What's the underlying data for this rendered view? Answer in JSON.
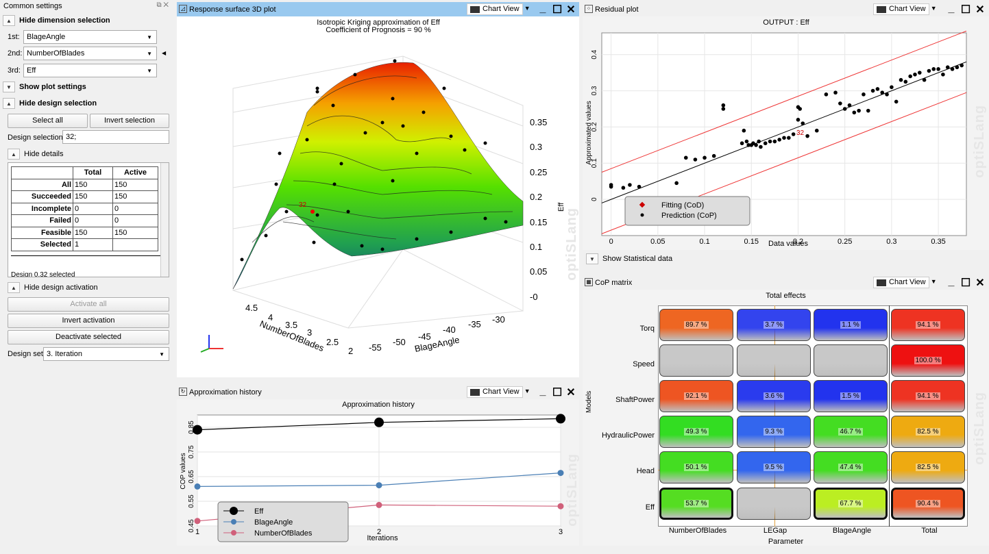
{
  "left_panel": {
    "title": "Common settings",
    "hide_dimension": "Hide dimension selection",
    "dim1_label": "1st:",
    "dim1_value": "BlageAngle",
    "dim2_label": "2nd:",
    "dim2_value": "NumberOfBlades",
    "dim3_label": "3rd:",
    "dim3_value": "Eff",
    "show_plot_settings": "Show plot settings",
    "hide_design_selection": "Hide design selection",
    "select_all": "Select all",
    "invert_selection": "Invert selection",
    "design_selection_label": "Design selection:",
    "design_selection_value": "32;",
    "hide_details": "Hide details",
    "details_headers": [
      "",
      "Total",
      "Active"
    ],
    "details_rows": [
      [
        "All",
        "150",
        "150"
      ],
      [
        "Succeeded",
        "150",
        "150"
      ],
      [
        "Incomplete",
        "0",
        "0"
      ],
      [
        "Failed",
        "0",
        "0"
      ],
      [
        "Feasible",
        "150",
        "150"
      ],
      [
        "Selected",
        "1",
        ""
      ]
    ],
    "details_status": "Design 0.32 selected",
    "hide_design_activation": "Hide design activation",
    "activate_all": "Activate all",
    "invert_activation": "Invert activation",
    "deactivate_selected": "Deactivate selected",
    "design_set_label": "Design set:",
    "design_set_value": "3. Iteration"
  },
  "surface": {
    "title": "Response surface 3D plot",
    "chart_view": "Chart View",
    "plot_title": "Isotropic Kriging approximation of Eff",
    "plot_subtitle": "Coefficient of Prognosis = 90 %",
    "z_label": "Eff",
    "z_ticks": [
      "0.35",
      "0.3",
      "0.25",
      "0.2",
      "0.15",
      "0.1",
      "0.05",
      "-0"
    ],
    "x_label": "NumberOfBlades",
    "x_ticks": [
      "4.5",
      "4",
      "3.5",
      "3",
      "2.5",
      "2"
    ],
    "y_label": "BlageAngle",
    "y_ticks": [
      "-55",
      "-50",
      "-45",
      "-40",
      "-35",
      "-30"
    ],
    "marker": "32",
    "watermark": "optiSLang"
  },
  "residual": {
    "title": "Residual plot",
    "chart_view": "Chart View",
    "plot_title": "OUTPUT : Eff",
    "xlabel": "Data values",
    "ylabel": "Approximated values",
    "x_ticks": [
      "0",
      "0.05",
      "0.1",
      "0.15",
      "0.2",
      "0.25",
      "0.3",
      "0.35"
    ],
    "y_ticks": [
      "0",
      "0.1",
      "0.2",
      "0.3",
      "0.4"
    ],
    "legend": [
      "Fitting (CoD)",
      "Prediction (CoP)"
    ],
    "marker": "32",
    "show_stats": "Show Statistical data",
    "watermark": "optiSLang"
  },
  "history": {
    "title": "Approximation history",
    "chart_view": "Chart View",
    "plot_title": "Approximation history",
    "xlabel": "Iterations",
    "ylabel": "COP values",
    "watermark": "optiSLang"
  },
  "cop": {
    "title": "CoP matrix",
    "chart_view": "Chart View",
    "plot_title": "Total effects",
    "xlabel": "Parameter",
    "ylabel": "Models",
    "columns": [
      "NumberOfBlades",
      "LEGap",
      "BlageAngle",
      "Total"
    ],
    "rows": [
      "Torq",
      "Speed",
      "ShaftPower",
      "HydraulicPower",
      "Head",
      "Eff"
    ],
    "values": [
      [
        "89.7 %",
        "3.7 %",
        "1.1 %",
        "94.1 %"
      ],
      [
        "",
        "",
        "",
        "100.0 %"
      ],
      [
        "92.1 %",
        "3.6 %",
        "1.5 %",
        "94.1 %"
      ],
      [
        "49.3 %",
        "9.3 %",
        "46.7 %",
        "82.5 %"
      ],
      [
        "50.1 %",
        "9.5 %",
        "47.4 %",
        "82.5 %"
      ],
      [
        "53.7 %",
        "",
        "67.7 %",
        "90.4 %"
      ]
    ],
    "watermark": "optiSLang"
  },
  "chart_data": [
    {
      "type": "line",
      "title": "Approximation history",
      "xlabel": "Iterations",
      "ylabel": "COP values",
      "x": [
        1,
        2,
        3
      ],
      "xlim": [
        1,
        3
      ],
      "ylim": [
        0.45,
        0.9
      ],
      "y_ticks": [
        0.45,
        0.55,
        0.65,
        0.75,
        0.85
      ],
      "series": [
        {
          "name": "Eff",
          "values": [
            0.84,
            0.87,
            0.885
          ],
          "color": "#000000"
        },
        {
          "name": "BlageAngle",
          "values": [
            0.61,
            0.615,
            0.665
          ],
          "color": "#4a7fb5"
        },
        {
          "name": "NumberOfBlades",
          "values": [
            0.47,
            0.535,
            0.53
          ],
          "color": "#d0607a"
        }
      ]
    },
    {
      "type": "scatter",
      "title": "OUTPUT : Eff",
      "xlabel": "Data values",
      "ylabel": "Approximated values",
      "xlim": [
        -0.01,
        0.38
      ],
      "ylim": [
        -0.1,
        0.46
      ],
      "points": [
        [
          0.0,
          0.04
        ],
        [
          0.0,
          0.035
        ],
        [
          0.013,
          0.032
        ],
        [
          0.02,
          0.04
        ],
        [
          0.03,
          0.035
        ],
        [
          0.03,
          0.0
        ],
        [
          0.07,
          0.045
        ],
        [
          0.08,
          0.115
        ],
        [
          0.09,
          0.11
        ],
        [
          0.1,
          0.115
        ],
        [
          0.11,
          0.12
        ],
        [
          0.12,
          0.26
        ],
        [
          0.12,
          0.25
        ],
        [
          0.14,
          0.155
        ],
        [
          0.142,
          0.19
        ],
        [
          0.145,
          0.16
        ],
        [
          0.147,
          0.15
        ],
        [
          0.15,
          0.15
        ],
        [
          0.152,
          0.155
        ],
        [
          0.155,
          0.15
        ],
        [
          0.158,
          0.16
        ],
        [
          0.16,
          0.145
        ],
        [
          0.165,
          0.155
        ],
        [
          0.17,
          0.16
        ],
        [
          0.175,
          0.16
        ],
        [
          0.18,
          0.165
        ],
        [
          0.185,
          0.17
        ],
        [
          0.19,
          0.17
        ],
        [
          0.195,
          0.18
        ],
        [
          0.2,
          0.22
        ],
        [
          0.2,
          0.255
        ],
        [
          0.202,
          0.25
        ],
        [
          0.205,
          0.21
        ],
        [
          0.21,
          0.175
        ],
        [
          0.22,
          0.19
        ],
        [
          0.23,
          0.29
        ],
        [
          0.24,
          0.295
        ],
        [
          0.245,
          0.265
        ],
        [
          0.25,
          0.25
        ],
        [
          0.255,
          0.26
        ],
        [
          0.26,
          0.24
        ],
        [
          0.265,
          0.245
        ],
        [
          0.27,
          0.29
        ],
        [
          0.275,
          0.245
        ],
        [
          0.28,
          0.3
        ],
        [
          0.285,
          0.305
        ],
        [
          0.29,
          0.295
        ],
        [
          0.295,
          0.29
        ],
        [
          0.3,
          0.31
        ],
        [
          0.305,
          0.27
        ],
        [
          0.31,
          0.33
        ],
        [
          0.315,
          0.325
        ],
        [
          0.32,
          0.34
        ],
        [
          0.325,
          0.345
        ],
        [
          0.33,
          0.35
        ],
        [
          0.335,
          0.33
        ],
        [
          0.34,
          0.355
        ],
        [
          0.345,
          0.36
        ],
        [
          0.35,
          0.36
        ],
        [
          0.355,
          0.345
        ],
        [
          0.36,
          0.365
        ],
        [
          0.365,
          0.36
        ],
        [
          0.37,
          0.365
        ],
        [
          0.375,
          0.37
        ]
      ],
      "fit_line": [
        [
          -0.01,
          -0.01
        ],
        [
          0.38,
          0.38
        ]
      ],
      "bounds": [
        [
          [
            -0.01,
            0.075
          ],
          [
            0.38,
            0.465
          ]
        ],
        [
          [
            -0.01,
            -0.095
          ],
          [
            0.38,
            0.295
          ]
        ]
      ]
    },
    {
      "type": "heatmap",
      "title": "Total effects",
      "xlabel": "Parameter",
      "ylabel": "Models",
      "x": [
        "NumberOfBlades",
        "LEGap",
        "BlageAngle",
        "Total"
      ],
      "y": [
        "Torq",
        "Speed",
        "ShaftPower",
        "HydraulicPower",
        "Head",
        "Eff"
      ],
      "values": [
        [
          89.7,
          3.7,
          1.1,
          94.1
        ],
        [
          null,
          null,
          null,
          100.0
        ],
        [
          92.1,
          3.6,
          1.5,
          94.1
        ],
        [
          49.3,
          9.3,
          46.7,
          82.5
        ],
        [
          50.1,
          9.5,
          47.4,
          82.5
        ],
        [
          53.7,
          null,
          67.7,
          90.4
        ]
      ],
      "colors": [
        [
          "#ee6622",
          "#3344ee",
          "#2233ee",
          "#ee3322"
        ],
        [
          "#c8c8c8",
          "#c8c8c8",
          "#c8c8c8",
          "#ee1111"
        ],
        [
          "#ee5522",
          "#2a3bee",
          "#2233ee",
          "#ee3322"
        ],
        [
          "#33dd22",
          "#3366ee",
          "#44dd22",
          "#eeaa11"
        ],
        [
          "#44dd22",
          "#3366ee",
          "#44dd22",
          "#eeaa11"
        ],
        [
          "#55dd22",
          "#c8c8c8",
          "#bbee22",
          "#ee5522"
        ]
      ]
    }
  ]
}
